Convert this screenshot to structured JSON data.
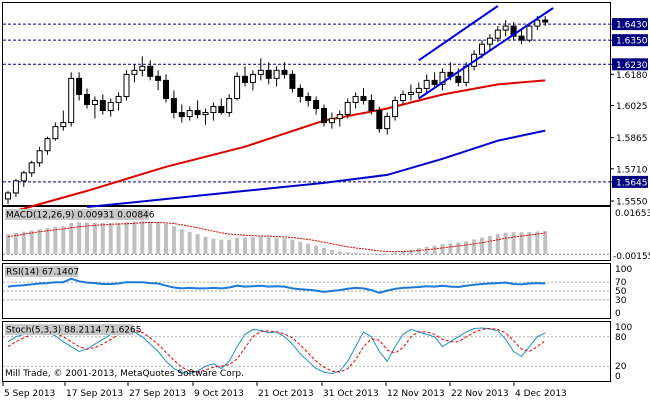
{
  "chart_data": [
    {
      "type": "candlestick",
      "symbol": "EURUSD",
      "timeframe": "Daily",
      "price_ticks": [
        "1.6430",
        "1.6350",
        "1.6230",
        "1.6180",
        "1.6025",
        "1.5865",
        "1.5710",
        "1.5645",
        "1.5550"
      ],
      "horizontal_levels": [
        1.643,
        1.635,
        1.623,
        1.5645
      ],
      "x_labels": [
        "5 Sep 2013",
        "17 Sep 2013",
        "27 Sep 2013",
        "9 Oct 2013",
        "21 Oct 2013",
        "31 Oct 2013",
        "12 Nov 2013",
        "22 Nov 2013",
        "4 Dec 2013"
      ],
      "ylim": [
        1.553,
        1.6535
      ],
      "candles": [
        {
          "o": 1.556,
          "h": 1.56,
          "l": 1.5535,
          "c": 1.559
        },
        {
          "o": 1.559,
          "h": 1.566,
          "l": 1.557,
          "c": 1.565
        },
        {
          "o": 1.565,
          "h": 1.57,
          "l": 1.562,
          "c": 1.569
        },
        {
          "o": 1.569,
          "h": 1.575,
          "l": 1.567,
          "c": 1.574
        },
        {
          "o": 1.574,
          "h": 1.582,
          "l": 1.572,
          "c": 1.58
        },
        {
          "o": 1.58,
          "h": 1.587,
          "l": 1.578,
          "c": 1.586
        },
        {
          "o": 1.586,
          "h": 1.594,
          "l": 1.585,
          "c": 1.592
        },
        {
          "o": 1.592,
          "h": 1.6,
          "l": 1.59,
          "c": 1.594
        },
        {
          "o": 1.594,
          "h": 1.619,
          "l": 1.592,
          "c": 1.616
        },
        {
          "o": 1.616,
          "h": 1.619,
          "l": 1.605,
          "c": 1.608
        },
        {
          "o": 1.608,
          "h": 1.611,
          "l": 1.601,
          "c": 1.603
        },
        {
          "o": 1.603,
          "h": 1.607,
          "l": 1.596,
          "c": 1.605
        },
        {
          "o": 1.605,
          "h": 1.608,
          "l": 1.598,
          "c": 1.6
        },
        {
          "o": 1.6,
          "h": 1.606,
          "l": 1.597,
          "c": 1.604
        },
        {
          "o": 1.604,
          "h": 1.609,
          "l": 1.6,
          "c": 1.607
        },
        {
          "o": 1.607,
          "h": 1.62,
          "l": 1.605,
          "c": 1.618
        },
        {
          "o": 1.618,
          "h": 1.623,
          "l": 1.614,
          "c": 1.62
        },
        {
          "o": 1.62,
          "h": 1.627,
          "l": 1.617,
          "c": 1.622
        },
        {
          "o": 1.622,
          "h": 1.625,
          "l": 1.615,
          "c": 1.617
        },
        {
          "o": 1.617,
          "h": 1.62,
          "l": 1.61,
          "c": 1.615
        },
        {
          "o": 1.615,
          "h": 1.618,
          "l": 1.604,
          "c": 1.606
        },
        {
          "o": 1.606,
          "h": 1.61,
          "l": 1.596,
          "c": 1.599
        },
        {
          "o": 1.599,
          "h": 1.603,
          "l": 1.594,
          "c": 1.597
        },
        {
          "o": 1.597,
          "h": 1.602,
          "l": 1.595,
          "c": 1.6
        },
        {
          "o": 1.6,
          "h": 1.605,
          "l": 1.596,
          "c": 1.598
        },
        {
          "o": 1.598,
          "h": 1.601,
          "l": 1.593,
          "c": 1.599
        },
        {
          "o": 1.599,
          "h": 1.604,
          "l": 1.595,
          "c": 1.602
        },
        {
          "o": 1.602,
          "h": 1.606,
          "l": 1.598,
          "c": 1.599
        },
        {
          "o": 1.599,
          "h": 1.608,
          "l": 1.597,
          "c": 1.606
        },
        {
          "o": 1.606,
          "h": 1.619,
          "l": 1.605,
          "c": 1.617
        },
        {
          "o": 1.617,
          "h": 1.622,
          "l": 1.612,
          "c": 1.614
        },
        {
          "o": 1.614,
          "h": 1.62,
          "l": 1.61,
          "c": 1.618
        },
        {
          "o": 1.618,
          "h": 1.626,
          "l": 1.615,
          "c": 1.62
        },
        {
          "o": 1.62,
          "h": 1.624,
          "l": 1.613,
          "c": 1.616
        },
        {
          "o": 1.616,
          "h": 1.622,
          "l": 1.612,
          "c": 1.62
        },
        {
          "o": 1.62,
          "h": 1.624,
          "l": 1.616,
          "c": 1.618
        },
        {
          "o": 1.618,
          "h": 1.62,
          "l": 1.609,
          "c": 1.611
        },
        {
          "o": 1.611,
          "h": 1.613,
          "l": 1.604,
          "c": 1.607
        },
        {
          "o": 1.607,
          "h": 1.609,
          "l": 1.602,
          "c": 1.605
        },
        {
          "o": 1.605,
          "h": 1.607,
          "l": 1.598,
          "c": 1.601
        },
        {
          "o": 1.601,
          "h": 1.603,
          "l": 1.592,
          "c": 1.594
        },
        {
          "o": 1.594,
          "h": 1.599,
          "l": 1.591,
          "c": 1.596
        },
        {
          "o": 1.596,
          "h": 1.6,
          "l": 1.592,
          "c": 1.598
        },
        {
          "o": 1.598,
          "h": 1.606,
          "l": 1.596,
          "c": 1.604
        },
        {
          "o": 1.604,
          "h": 1.609,
          "l": 1.601,
          "c": 1.607
        },
        {
          "o": 1.607,
          "h": 1.611,
          "l": 1.603,
          "c": 1.605
        },
        {
          "o": 1.605,
          "h": 1.608,
          "l": 1.598,
          "c": 1.6
        },
        {
          "o": 1.6,
          "h": 1.602,
          "l": 1.589,
          "c": 1.591
        },
        {
          "o": 1.591,
          "h": 1.599,
          "l": 1.588,
          "c": 1.597
        },
        {
          "o": 1.597,
          "h": 1.607,
          "l": 1.595,
          "c": 1.605
        },
        {
          "o": 1.605,
          "h": 1.61,
          "l": 1.603,
          "c": 1.608
        },
        {
          "o": 1.608,
          "h": 1.613,
          "l": 1.605,
          "c": 1.609
        },
        {
          "o": 1.609,
          "h": 1.614,
          "l": 1.606,
          "c": 1.611
        },
        {
          "o": 1.611,
          "h": 1.618,
          "l": 1.609,
          "c": 1.615
        },
        {
          "o": 1.615,
          "h": 1.619,
          "l": 1.611,
          "c": 1.613
        },
        {
          "o": 1.613,
          "h": 1.621,
          "l": 1.61,
          "c": 1.619
        },
        {
          "o": 1.619,
          "h": 1.624,
          "l": 1.615,
          "c": 1.617
        },
        {
          "o": 1.617,
          "h": 1.621,
          "l": 1.612,
          "c": 1.614
        },
        {
          "o": 1.614,
          "h": 1.624,
          "l": 1.612,
          "c": 1.622
        },
        {
          "o": 1.622,
          "h": 1.63,
          "l": 1.62,
          "c": 1.628
        },
        {
          "o": 1.628,
          "h": 1.635,
          "l": 1.626,
          "c": 1.633
        },
        {
          "o": 1.633,
          "h": 1.638,
          "l": 1.63,
          "c": 1.636
        },
        {
          "o": 1.636,
          "h": 1.642,
          "l": 1.634,
          "c": 1.64
        },
        {
          "o": 1.64,
          "h": 1.645,
          "l": 1.637,
          "c": 1.642
        },
        {
          "o": 1.642,
          "h": 1.644,
          "l": 1.635,
          "c": 1.637
        },
        {
          "o": 1.637,
          "h": 1.64,
          "l": 1.633,
          "c": 1.635
        },
        {
          "o": 1.635,
          "h": 1.643,
          "l": 1.634,
          "c": 1.642
        },
        {
          "o": 1.642,
          "h": 1.647,
          "l": 1.64,
          "c": 1.645
        },
        {
          "o": 1.645,
          "h": 1.647,
          "l": 1.642,
          "c": 1.644
        }
      ],
      "ma_red": [
        [
          0,
          1.549
        ],
        [
          10,
          1.56
        ],
        [
          20,
          1.572
        ],
        [
          30,
          1.582
        ],
        [
          40,
          1.595
        ],
        [
          48,
          1.601
        ],
        [
          55,
          1.608
        ],
        [
          62,
          1.613
        ],
        [
          68,
          1.615
        ]
      ],
      "ma_blue": [
        [
          10,
          1.552
        ],
        [
          20,
          1.556
        ],
        [
          30,
          1.56
        ],
        [
          40,
          1.564
        ],
        [
          48,
          1.568
        ],
        [
          55,
          1.576
        ],
        [
          62,
          1.585
        ],
        [
          68,
          1.59
        ]
      ],
      "channel_upper": [
        [
          52,
          1.625
        ],
        [
          62,
          1.652
        ]
      ],
      "channel_lower": [
        [
          52,
          1.606
        ],
        [
          69,
          1.651
        ]
      ],
      "colors": {
        "candles": "#000000",
        "ma_red": "#dd0000",
        "ma_blue": "#0000cc",
        "channel": "#0000dd",
        "levels": "#000080"
      }
    },
    {
      "type": "bar",
      "title": "MACD(12,26,9) 0.00931 0.00846",
      "tick_labels": [
        "0.01653",
        "-0.00155"
      ],
      "ylim": [
        -0.00155,
        0.01653
      ],
      "macd": [
        0.008,
        0.0085,
        0.009,
        0.0095,
        0.01,
        0.0105,
        0.011,
        0.0112,
        0.0125,
        0.0128,
        0.0127,
        0.0126,
        0.0125,
        0.0124,
        0.0124,
        0.0128,
        0.013,
        0.0132,
        0.013,
        0.0128,
        0.0122,
        0.0112,
        0.01,
        0.009,
        0.008,
        0.007,
        0.0062,
        0.0058,
        0.0058,
        0.0065,
        0.0067,
        0.0068,
        0.007,
        0.0068,
        0.0066,
        0.0064,
        0.0058,
        0.005,
        0.0042,
        0.0034,
        0.0025,
        0.0017,
        0.001,
        0.0008,
        0.0006,
        0.0004,
        0.0002,
        -0.0001,
        0.0001,
        0.0006,
        0.0012,
        0.0018,
        0.0024,
        0.003,
        0.0034,
        0.004,
        0.0044,
        0.0047,
        0.0052,
        0.0059,
        0.0066,
        0.0073,
        0.008,
        0.0086,
        0.0088,
        0.0088,
        0.0089,
        0.0091,
        0.0093
      ],
      "signal": [
        0.007,
        0.0075,
        0.008,
        0.0085,
        0.009,
        0.0094,
        0.0098,
        0.0101,
        0.0106,
        0.011,
        0.0113,
        0.0116,
        0.0118,
        0.012,
        0.0121,
        0.0122,
        0.0124,
        0.0126,
        0.0127,
        0.0127,
        0.0126,
        0.0123,
        0.0118,
        0.0112,
        0.0106,
        0.0099,
        0.0092,
        0.0086,
        0.0081,
        0.0078,
        0.0076,
        0.0074,
        0.0073,
        0.0072,
        0.0071,
        0.0069,
        0.0067,
        0.0063,
        0.0059,
        0.0054,
        0.0048,
        0.0042,
        0.0035,
        0.003,
        0.0025,
        0.0021,
        0.0017,
        0.0013,
        0.0011,
        0.001,
        0.0011,
        0.0012,
        0.0015,
        0.0018,
        0.0021,
        0.0025,
        0.0029,
        0.0033,
        0.0037,
        0.0041,
        0.0046,
        0.0052,
        0.0058,
        0.0064,
        0.0069,
        0.0073,
        0.0077,
        0.0081,
        0.0085
      ]
    },
    {
      "type": "line",
      "title": "RSI(14) 67.1407",
      "tick_labels": [
        "100",
        "70",
        "50",
        "30",
        "0"
      ],
      "levels": [
        70,
        50,
        30
      ],
      "ylim": [
        0,
        100
      ],
      "values": [
        60,
        62,
        63,
        65,
        67,
        68,
        70,
        70,
        78,
        72,
        69,
        68,
        66,
        66,
        67,
        70,
        70,
        70,
        68,
        67,
        62,
        58,
        56,
        57,
        56,
        56,
        57,
        56,
        58,
        62,
        60,
        61,
        62,
        60,
        61,
        60,
        56,
        54,
        53,
        51,
        48,
        50,
        52,
        55,
        57,
        56,
        52,
        46,
        51,
        55,
        57,
        58,
        59,
        61,
        60,
        62,
        60,
        59,
        62,
        64,
        66,
        67,
        68,
        69,
        66,
        65,
        67,
        68,
        67
      ]
    },
    {
      "type": "line",
      "title": "Stoch(5,3,3) 88.2114 71.6265",
      "tick_labels": [
        "100",
        "80",
        "20",
        "0"
      ],
      "levels": [
        80,
        20
      ],
      "ylim": [
        0,
        100
      ],
      "main": [
        70,
        80,
        85,
        90,
        92,
        88,
        82,
        70,
        60,
        50,
        55,
        65,
        75,
        85,
        95,
        97,
        90,
        80,
        65,
        50,
        30,
        15,
        8,
        5,
        10,
        20,
        25,
        15,
        30,
        60,
        85,
        95,
        93,
        88,
        90,
        80,
        65,
        45,
        30,
        15,
        8,
        5,
        10,
        30,
        60,
        90,
        80,
        50,
        30,
        60,
        85,
        95,
        90,
        85,
        80,
        60,
        70,
        80,
        90,
        97,
        98,
        96,
        92,
        75,
        50,
        40,
        60,
        80,
        88
      ],
      "signal": [
        60,
        70,
        78,
        85,
        88,
        90,
        87,
        80,
        70,
        60,
        55,
        58,
        65,
        75,
        85,
        92,
        94,
        89,
        78,
        65,
        48,
        32,
        18,
        10,
        8,
        12,
        18,
        20,
        23,
        35,
        58,
        80,
        91,
        92,
        90,
        86,
        78,
        63,
        47,
        30,
        18,
        10,
        8,
        15,
        33,
        60,
        76,
        73,
        53,
        47,
        58,
        80,
        90,
        90,
        85,
        75,
        70,
        70,
        80,
        89,
        95,
        97,
        95,
        88,
        72,
        55,
        50,
        60,
        72
      ]
    }
  ],
  "footer": {
    "copyright": "Mill Trade, © 2001-2013, MetaQuotes Software Corp."
  }
}
